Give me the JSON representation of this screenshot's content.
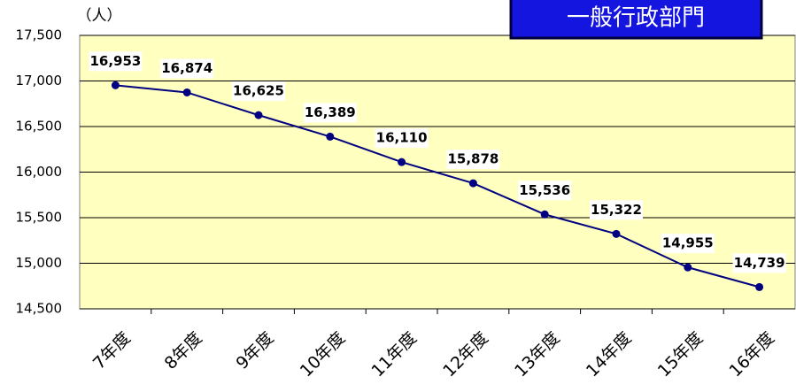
{
  "chart_data": {
    "type": "line",
    "title": "一般行政部門",
    "y_unit": "（人）",
    "categories": [
      "7年度",
      "8年度",
      "9年度",
      "10年度",
      "11年度",
      "12年度",
      "13年度",
      "14年度",
      "15年度",
      "16年度"
    ],
    "values": [
      16953,
      16874,
      16625,
      16389,
      16110,
      15878,
      15536,
      15322,
      14955,
      14739
    ],
    "value_labels": [
      "16,953",
      "16,874",
      "16,625",
      "16,389",
      "16,110",
      "15,878",
      "15,536",
      "15,322",
      "14,955",
      "14,739"
    ],
    "color": "#000080",
    "ylim": [
      14500,
      17500
    ],
    "yticks": [
      {
        "value": 14500,
        "label": "14,500"
      },
      {
        "value": 15000,
        "label": "15,000"
      },
      {
        "value": 15500,
        "label": "15,500"
      },
      {
        "value": 16000,
        "label": "16,000"
      },
      {
        "value": 16500,
        "label": "16,500"
      },
      {
        "value": 17000,
        "label": "17,000"
      },
      {
        "value": 17500,
        "label": "17,500"
      }
    ],
    "grid": true
  }
}
